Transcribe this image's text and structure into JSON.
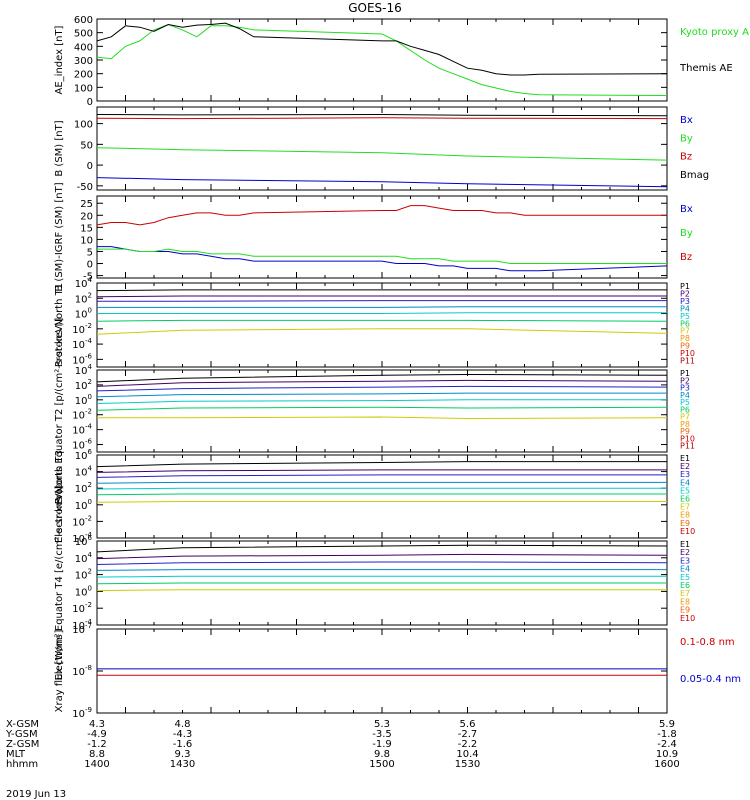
{
  "title": "GOES-16",
  "date_label": "2019 Jun 13",
  "footer": {
    "rows": [
      {
        "label": "X-GSM",
        "values": [
          "4.3",
          "4.8",
          "5.3",
          "5.6",
          "5.9"
        ]
      },
      {
        "label": "Y-GSM",
        "values": [
          "-4.9",
          "-4.3",
          "-3.5",
          "-2.7",
          "-1.8"
        ]
      },
      {
        "label": "Z-GSM",
        "values": [
          "-1.2",
          "-1.6",
          "-1.9",
          "-2.2",
          "-2.4"
        ]
      },
      {
        "label": "MLT",
        "values": [
          "8.8",
          "9.3",
          "9.8",
          "10.4",
          "10.9"
        ]
      },
      {
        "label": "hhmm",
        "values": [
          "1400",
          "1430",
          "1500",
          "1530",
          "1600"
        ]
      }
    ]
  },
  "colors": {
    "black": "#000000",
    "green": "#22dd22",
    "blue": "#0000cc",
    "red": "#cc0000",
    "p_channels": [
      "#000000",
      "#440066",
      "#2222cc",
      "#0088cc",
      "#00cccc",
      "#00cc66",
      "#cccc00",
      "#ee9900",
      "#ee6600",
      "#cc0000",
      "#aa0000"
    ],
    "e_channels": [
      "#000000",
      "#440066",
      "#2222cc",
      "#0088cc",
      "#00cccc",
      "#00cc66",
      "#cccc00",
      "#ee9900",
      "#ee6600",
      "#cc0000"
    ]
  },
  "chart_data": [
    {
      "type": "line",
      "panel": "ae",
      "ylabel": "AE_index [nT]",
      "ylim": [
        0,
        600
      ],
      "yticks": [
        "0",
        "100",
        "200",
        "300",
        "400",
        "500",
        "600"
      ],
      "x": [
        1400,
        1405,
        1410,
        1415,
        1420,
        1425,
        1430,
        1435,
        1440,
        1445,
        1450,
        1455,
        1500,
        1505,
        1510,
        1515,
        1520,
        1525,
        1530,
        1535,
        1540,
        1545,
        1550,
        1555,
        1600
      ],
      "series": [
        {
          "name": "Kyoto proxy AE",
          "color": "green",
          "values": [
            320,
            310,
            400,
            440,
            520,
            560,
            520,
            470,
            550,
            550,
            540,
            520,
            490,
            440,
            370,
            300,
            240,
            200,
            160,
            120,
            95,
            70,
            55,
            45,
            40
          ]
        },
        {
          "name": "Themis AE",
          "color": "black",
          "values": [
            440,
            470,
            550,
            540,
            510,
            560,
            540,
            555,
            560,
            570,
            530,
            470,
            440,
            440,
            400,
            370,
            340,
            290,
            240,
            225,
            200,
            190,
            190,
            195,
            200
          ]
        }
      ],
      "legend": [
        "Kyoto proxy AE",
        "Themis AE"
      ],
      "legend_position": "right"
    },
    {
      "type": "line",
      "panel": "b",
      "ylabel": "B (SM) [nT]",
      "ylim": [
        -60,
        140
      ],
      "yticks": [
        "-50",
        "0",
        "50",
        "100"
      ],
      "x": [
        1400,
        1430,
        1500,
        1530,
        1600
      ],
      "series": [
        {
          "name": "Bx",
          "color": "blue",
          "values": [
            -30,
            -35,
            -40,
            -45,
            -52
          ]
        },
        {
          "name": "By",
          "color": "green",
          "values": [
            42,
            37,
            30,
            22,
            12
          ]
        },
        {
          "name": "Bz",
          "color": "red",
          "values": [
            113,
            112,
            114,
            113,
            112
          ]
        },
        {
          "name": "Bmag",
          "color": "black",
          "values": [
            122,
            121,
            122,
            120,
            119
          ]
        }
      ],
      "legend": [
        "Bx",
        "By",
        "Bz",
        "Bmag"
      ],
      "legend_position": "right"
    },
    {
      "type": "line",
      "panel": "dbigrf",
      "ylabel": "B (SM)-IGRF (SM) [nT]",
      "ylim": [
        -6,
        28
      ],
      "yticks": [
        "-5",
        "0",
        "5",
        "10",
        "15",
        "20",
        "25"
      ],
      "x": [
        1400,
        1405,
        1410,
        1415,
        1420,
        1425,
        1430,
        1435,
        1440,
        1445,
        1450,
        1455,
        1500,
        1505,
        1510,
        1515,
        1520,
        1525,
        1530,
        1535,
        1540,
        1545,
        1550,
        1555,
        1600
      ],
      "series": [
        {
          "name": "Bx",
          "color": "blue",
          "values": [
            7,
            7,
            6,
            5,
            5,
            5,
            4,
            4,
            3,
            2,
            2,
            1,
            1,
            0,
            0,
            0,
            -1,
            -1,
            -2,
            -2,
            -2,
            -3,
            -3,
            -3,
            -1
          ]
        },
        {
          "name": "By",
          "color": "green",
          "values": [
            6,
            6,
            6,
            5,
            5,
            6,
            5,
            5,
            4,
            4,
            4,
            3,
            3,
            3,
            2,
            2,
            2,
            1,
            1,
            1,
            1,
            0,
            0,
            0,
            0
          ]
        },
        {
          "name": "Bz",
          "color": "red",
          "values": [
            16,
            17,
            17,
            16,
            17,
            19,
            20,
            21,
            21,
            20,
            20,
            21,
            22,
            22,
            24,
            24,
            23,
            22,
            22,
            22,
            21,
            21,
            20,
            20,
            20
          ]
        }
      ],
      "legend": [
        "Bx",
        "By",
        "Bz"
      ],
      "legend_position": "right"
    },
    {
      "type": "line",
      "panel": "pn",
      "log": true,
      "ylabel": "Protons North T1",
      "ylim": [
        -7,
        4
      ],
      "ytick_exps": [
        "4",
        "2",
        "0",
        "-2",
        "-4",
        "-6"
      ],
      "ytick_base": "10",
      "x": [
        1400,
        1430,
        1500,
        1530,
        1600
      ],
      "series": [
        {
          "name": "P1",
          "values": [
            3.0,
            3.1,
            3.1,
            3.1,
            3.1
          ]
        },
        {
          "name": "P2",
          "values": [
            2.2,
            2.3,
            2.3,
            2.3,
            2.3
          ]
        },
        {
          "name": "P3",
          "values": [
            1.6,
            1.6,
            1.7,
            1.7,
            1.7
          ]
        },
        {
          "name": "P4",
          "values": [
            0.8,
            0.8,
            0.8,
            0.9,
            0.9
          ]
        },
        {
          "name": "P5",
          "values": [
            0.0,
            0.0,
            0.0,
            0.1,
            0.1
          ]
        },
        {
          "name": "P6",
          "values": [
            -1.0,
            -0.9,
            -0.9,
            -0.9,
            -1.0
          ]
        },
        {
          "name": "P7",
          "values": [
            -2.7,
            -2.2,
            -2.0,
            -2.0,
            -2.6
          ]
        }
      ],
      "legend": [
        "P1",
        "P2",
        "P3",
        "P4",
        "P5",
        "P6",
        "P7",
        "P8",
        "P9",
        "P10",
        "P11"
      ],
      "legend_position": "right"
    },
    {
      "type": "line",
      "panel": "pe",
      "log": true,
      "ylabel": "Protons Equator T2 [p/(cm²-s-sr-keV)]",
      "ylim": [
        -7,
        4
      ],
      "ytick_exps": [
        "4",
        "2",
        "0",
        "-2",
        "-4",
        "-6"
      ],
      "ytick_base": "10",
      "x": [
        1400,
        1430,
        1500,
        1530,
        1600
      ],
      "series": [
        {
          "name": "P1",
          "values": [
            2.4,
            2.9,
            3.3,
            3.4,
            3.3
          ]
        },
        {
          "name": "P2",
          "values": [
            1.8,
            2.3,
            2.5,
            2.6,
            2.5
          ]
        },
        {
          "name": "P3",
          "values": [
            1.2,
            1.5,
            1.7,
            1.8,
            1.7
          ]
        },
        {
          "name": "P4",
          "values": [
            0.4,
            0.7,
            0.8,
            0.9,
            0.9
          ]
        },
        {
          "name": "P5",
          "values": [
            -0.5,
            -0.2,
            -0.1,
            0.0,
            0.0
          ]
        },
        {
          "name": "P6",
          "values": [
            -1.4,
            -1.1,
            -1.0,
            -1.1,
            -1.0
          ]
        },
        {
          "name": "P7",
          "values": [
            -2.4,
            -2.4,
            -2.3,
            -2.5,
            -2.4
          ]
        }
      ],
      "legend": [
        "P1",
        "P2",
        "P3",
        "P4",
        "P5",
        "P6",
        "P7",
        "P8",
        "P9",
        "P10",
        "P11"
      ],
      "legend_position": "right"
    },
    {
      "type": "line",
      "panel": "en",
      "log": true,
      "ylabel": "Electrons North T3",
      "ylim": [
        -4,
        6
      ],
      "ytick_exps": [
        "6",
        "4",
        "2",
        "0",
        "-2",
        "-4"
      ],
      "ytick_base": "10",
      "x": [
        1400,
        1430,
        1500,
        1530,
        1600
      ],
      "series": [
        {
          "name": "E1",
          "values": [
            4.6,
            4.9,
            5.1,
            5.2,
            5.2
          ]
        },
        {
          "name": "E2",
          "values": [
            3.9,
            4.1,
            4.2,
            4.2,
            4.2
          ]
        },
        {
          "name": "E3",
          "values": [
            3.3,
            3.5,
            3.6,
            3.6,
            3.6
          ]
        },
        {
          "name": "E4",
          "values": [
            2.6,
            2.7,
            2.7,
            2.7,
            2.7
          ]
        },
        {
          "name": "E5",
          "values": [
            1.9,
            2.0,
            2.0,
            2.0,
            2.0
          ]
        },
        {
          "name": "E6",
          "values": [
            1.2,
            1.3,
            1.3,
            1.3,
            1.3
          ]
        },
        {
          "name": "E7",
          "values": [
            0.3,
            0.4,
            0.4,
            0.4,
            0.4
          ]
        }
      ],
      "legend": [
        "E1",
        "E2",
        "E3",
        "E4",
        "E5",
        "E6",
        "E7",
        "E8",
        "E9",
        "E10"
      ],
      "legend_position": "right"
    },
    {
      "type": "line",
      "panel": "ee",
      "log": true,
      "ylabel": "Electrons Equator T4 [e/(cm²-s-sr-keV)]",
      "ylim": [
        -4,
        6
      ],
      "ytick_exps": [
        "6",
        "4",
        "2",
        "0",
        "-2",
        "-4"
      ],
      "ytick_base": "10",
      "x": [
        1400,
        1430,
        1500,
        1530,
        1600
      ],
      "series": [
        {
          "name": "E1",
          "values": [
            4.7,
            5.2,
            5.4,
            5.5,
            5.4
          ]
        },
        {
          "name": "E2",
          "values": [
            3.9,
            4.2,
            4.3,
            4.4,
            4.3
          ]
        },
        {
          "name": "E3",
          "values": [
            3.2,
            3.4,
            3.5,
            3.5,
            3.4
          ]
        },
        {
          "name": "E4",
          "values": [
            2.5,
            2.6,
            2.6,
            2.6,
            2.6
          ]
        },
        {
          "name": "E5",
          "values": [
            1.7,
            1.8,
            1.8,
            1.8,
            1.8
          ]
        },
        {
          "name": "E6",
          "values": [
            0.9,
            1.0,
            1.0,
            1.0,
            1.0
          ]
        },
        {
          "name": "E7",
          "values": [
            0.1,
            0.2,
            0.2,
            0.2,
            0.2
          ]
        }
      ],
      "legend": [
        "E1",
        "E2",
        "E3",
        "E4",
        "E5",
        "E6",
        "E7",
        "E8",
        "E9",
        "E10"
      ],
      "legend_position": "right"
    },
    {
      "type": "line",
      "panel": "xray",
      "log": true,
      "ylabel": "Xray flux [W/m²]",
      "ylim": [
        -9,
        -7
      ],
      "ytick_exps": [
        "-7",
        "-8",
        "-9"
      ],
      "ytick_base": "10",
      "x": [
        1400,
        1430,
        1500,
        1530,
        1600
      ],
      "series": [
        {
          "name": "0.1-0.8 nm",
          "color": "red",
          "values": [
            -8.1,
            -8.1,
            -8.1,
            -8.1,
            -8.1
          ]
        },
        {
          "name": "0.05-0.4 nm",
          "color": "blue",
          "values": [
            -7.95,
            -7.95,
            -7.95,
            -7.95,
            -7.95
          ]
        }
      ],
      "legend": [
        "0.1-0.8 nm",
        "0.05-0.4 nm"
      ],
      "legend_position": "right"
    }
  ]
}
